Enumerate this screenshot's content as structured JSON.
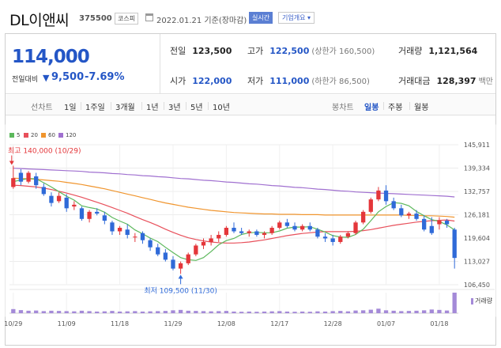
{
  "header": {
    "stock_name": "DL이앤씨",
    "stock_code": "375500",
    "market": "코스피",
    "date_text": "2022.01.21 기준(장마감)",
    "realtime_label": "실시간",
    "overview_label": "기업개요 ▾"
  },
  "price": {
    "current": "114,000",
    "change_label": "전일대비",
    "change_arrow": "▼",
    "change_value": "9,500",
    "change_pct": "-7.69%"
  },
  "stats": {
    "prev_close_label": "전일",
    "prev_close": "123,500",
    "high_label": "고가",
    "high": "122,500",
    "high_limit": "(상한가 160,500)",
    "volume_label": "거래량",
    "volume": "1,121,564",
    "open_label": "시가",
    "open": "122,000",
    "low_label": "저가",
    "low": "111,000",
    "low_limit": "(하한가 86,500)",
    "amount_label": "거래대금",
    "amount": "128,397",
    "amount_unit": "백만"
  },
  "tabs": {
    "line_title": "선차트",
    "line_tabs": [
      "1일",
      "1주일",
      "3개월",
      "1년",
      "3년",
      "5년",
      "10년"
    ],
    "candle_title": "봉차트",
    "candle_tabs": [
      "일봉",
      "주봉",
      "월봉"
    ],
    "active_candle": "일봉"
  },
  "colors": {
    "up": "#e4363a",
    "down": "#2f6ad8",
    "ma5": "#5cb85c",
    "ma20": "#e8505b",
    "ma60": "#f0952e",
    "ma120": "#a070d0",
    "volume": "#a48ad8"
  },
  "chart_data": {
    "type": "candlestick",
    "legend": [
      {
        "name": "5",
        "color": "#5cb85c"
      },
      {
        "name": "20",
        "color": "#e8505b"
      },
      {
        "name": "60",
        "color": "#f0952e"
      },
      {
        "name": "120",
        "color": "#a070d0"
      }
    ],
    "y_ticks": [
      145911,
      139334,
      132757,
      126181,
      119604,
      113027,
      106450
    ],
    "y_tick_labels": [
      "145,911",
      "139,334",
      "132,757",
      "126,181",
      "119,604",
      "113,027",
      "106,450"
    ],
    "ylim": [
      106450,
      145911
    ],
    "x_labels": [
      {
        "label": "10/29",
        "index": 0
      },
      {
        "label": "11/09",
        "index": 7
      },
      {
        "label": "11/18",
        "index": 14
      },
      {
        "label": "11/29",
        "index": 21
      },
      {
        "label": "12/08",
        "index": 28
      },
      {
        "label": "12/17",
        "index": 35
      },
      {
        "label": "12/28",
        "index": 42
      },
      {
        "label": "01/07",
        "index": 49
      },
      {
        "label": "01/18",
        "index": 56
      }
    ],
    "annotations": {
      "high_label": "최고 140,000 (10/29)",
      "high_value": 140000,
      "high_index": 0,
      "low_label": "최저 109,500 (11/30)",
      "low_value": 109500,
      "low_index": 22
    },
    "volume_label": "거래량",
    "candles": [
      {
        "o": 134000,
        "h": 140000,
        "l": 133500,
        "c": 136500
      },
      {
        "o": 138000,
        "h": 139000,
        "l": 134500,
        "c": 135500
      },
      {
        "o": 135500,
        "h": 138500,
        "l": 135000,
        "c": 138000
      },
      {
        "o": 137000,
        "h": 138000,
        "l": 133500,
        "c": 134500
      },
      {
        "o": 134000,
        "h": 135000,
        "l": 131500,
        "c": 132000
      },
      {
        "o": 131500,
        "h": 132500,
        "l": 128500,
        "c": 129500
      },
      {
        "o": 130000,
        "h": 132500,
        "l": 129500,
        "c": 131500
      },
      {
        "o": 131000,
        "h": 132000,
        "l": 127000,
        "c": 128000
      },
      {
        "o": 128500,
        "h": 130000,
        "l": 127500,
        "c": 129000
      },
      {
        "o": 128000,
        "h": 128500,
        "l": 124500,
        "c": 125000
      },
      {
        "o": 125000,
        "h": 127500,
        "l": 124000,
        "c": 127000
      },
      {
        "o": 127000,
        "h": 128000,
        "l": 126000,
        "c": 126500
      },
      {
        "o": 126000,
        "h": 127000,
        "l": 123500,
        "c": 124500
      },
      {
        "o": 124000,
        "h": 124500,
        "l": 120500,
        "c": 121500
      },
      {
        "o": 121500,
        "h": 123000,
        "l": 120500,
        "c": 122500
      },
      {
        "o": 122000,
        "h": 123500,
        "l": 119500,
        "c": 120500
      },
      {
        "o": 120000,
        "h": 121000,
        "l": 118500,
        "c": 120000
      },
      {
        "o": 121000,
        "h": 121500,
        "l": 118000,
        "c": 119000
      },
      {
        "o": 119000,
        "h": 119500,
        "l": 116000,
        "c": 117000
      },
      {
        "o": 117000,
        "h": 118000,
        "l": 114500,
        "c": 115000
      },
      {
        "o": 115500,
        "h": 116500,
        "l": 113000,
        "c": 113500
      },
      {
        "o": 113500,
        "h": 114500,
        "l": 110500,
        "c": 111000
      },
      {
        "o": 111000,
        "h": 113000,
        "l": 109500,
        "c": 112500
      },
      {
        "o": 112500,
        "h": 115500,
        "l": 112000,
        "c": 115000
      },
      {
        "o": 115000,
        "h": 118000,
        "l": 114500,
        "c": 117500
      },
      {
        "o": 117500,
        "h": 119500,
        "l": 116500,
        "c": 118500
      },
      {
        "o": 118500,
        "h": 120500,
        "l": 117500,
        "c": 119500
      },
      {
        "o": 119500,
        "h": 121500,
        "l": 118500,
        "c": 120500
      },
      {
        "o": 120500,
        "h": 123000,
        "l": 120000,
        "c": 122500
      },
      {
        "o": 122500,
        "h": 124000,
        "l": 121000,
        "c": 121500
      },
      {
        "o": 121500,
        "h": 122500,
        "l": 120500,
        "c": 121000
      },
      {
        "o": 121000,
        "h": 122000,
        "l": 120000,
        "c": 121500
      },
      {
        "o": 121500,
        "h": 122000,
        "l": 120000,
        "c": 120500
      },
      {
        "o": 120500,
        "h": 121500,
        "l": 119500,
        "c": 121000
      },
      {
        "o": 121000,
        "h": 123000,
        "l": 120500,
        "c": 122500
      },
      {
        "o": 122500,
        "h": 124500,
        "l": 122000,
        "c": 124000
      },
      {
        "o": 124000,
        "h": 125000,
        "l": 122500,
        "c": 123000
      },
      {
        "o": 123000,
        "h": 124000,
        "l": 121500,
        "c": 122000
      },
      {
        "o": 122000,
        "h": 123500,
        "l": 121500,
        "c": 123000
      },
      {
        "o": 123000,
        "h": 124000,
        "l": 121500,
        "c": 122000
      },
      {
        "o": 122000,
        "h": 122500,
        "l": 119500,
        "c": 120000
      },
      {
        "o": 120000,
        "h": 121000,
        "l": 118500,
        "c": 119500
      },
      {
        "o": 119500,
        "h": 120500,
        "l": 117500,
        "c": 118500
      },
      {
        "o": 118500,
        "h": 120500,
        "l": 118000,
        "c": 120000
      },
      {
        "o": 120000,
        "h": 121500,
        "l": 119500,
        "c": 121000
      },
      {
        "o": 121000,
        "h": 124500,
        "l": 120500,
        "c": 124000
      },
      {
        "o": 124000,
        "h": 127500,
        "l": 123500,
        "c": 127000
      },
      {
        "o": 127000,
        "h": 131000,
        "l": 126500,
        "c": 130500
      },
      {
        "o": 130500,
        "h": 134000,
        "l": 130000,
        "c": 133000
      },
      {
        "o": 133000,
        "h": 134500,
        "l": 129000,
        "c": 130000
      },
      {
        "o": 130000,
        "h": 131000,
        "l": 127500,
        "c": 128000
      },
      {
        "o": 128000,
        "h": 129000,
        "l": 125500,
        "c": 126000
      },
      {
        "o": 126000,
        "h": 127000,
        "l": 125000,
        "c": 126500
      },
      {
        "o": 126500,
        "h": 127500,
        "l": 124500,
        "c": 125000
      },
      {
        "o": 125000,
        "h": 126000,
        "l": 121500,
        "c": 122000
      },
      {
        "o": 123000,
        "h": 125500,
        "l": 120500,
        "c": 121000
      },
      {
        "o": 123500,
        "h": 125500,
        "l": 122000,
        "c": 124500
      },
      {
        "o": 124500,
        "h": 125000,
        "l": 122500,
        "c": 123500
      },
      {
        "o": 122000,
        "h": 122500,
        "l": 111000,
        "c": 114000
      }
    ],
    "volume": [
      0.2,
      0.15,
      0.12,
      0.13,
      0.1,
      0.12,
      0.11,
      0.1,
      0.09,
      0.12,
      0.1,
      0.08,
      0.09,
      0.11,
      0.08,
      0.09,
      0.1,
      0.08,
      0.09,
      0.1,
      0.11,
      0.14,
      0.16,
      0.12,
      0.11,
      0.1,
      0.09,
      0.1,
      0.11,
      0.08,
      0.07,
      0.08,
      0.07,
      0.08,
      0.09,
      0.1,
      0.08,
      0.07,
      0.08,
      0.07,
      0.09,
      0.08,
      0.1,
      0.11,
      0.09,
      0.13,
      0.14,
      0.17,
      0.22,
      0.14,
      0.12,
      0.1,
      0.11,
      0.12,
      0.14,
      0.18,
      0.16,
      0.13,
      1.0
    ],
    "ma5": [
      135500,
      136000,
      136400,
      136300,
      135200,
      134000,
      132700,
      131400,
      130300,
      128700,
      128200,
      127800,
      126900,
      125400,
      124400,
      123500,
      121900,
      120800,
      119600,
      118600,
      117000,
      115500,
      114100,
      113500,
      113300,
      114100,
      115800,
      117700,
      118900,
      119500,
      120600,
      121100,
      121200,
      121100,
      121100,
      121600,
      122400,
      122700,
      122700,
      122800,
      122100,
      121300,
      120300,
      119900,
      119800,
      120600,
      122100,
      124500,
      127000,
      128500,
      129600,
      129400,
      128700,
      127100,
      125900,
      124800,
      124300,
      123300,
      121900
    ],
    "ma20": [
      134500,
      134400,
      134200,
      134000,
      133700,
      133300,
      132800,
      132300,
      131700,
      131100,
      130400,
      129700,
      129000,
      128200,
      127400,
      126600,
      125700,
      124800,
      124000,
      123100,
      122100,
      121200,
      120400,
      119700,
      119200,
      118800,
      118500,
      118300,
      118200,
      118200,
      118300,
      118500,
      118800,
      119100,
      119500,
      119900,
      120300,
      120600,
      120900,
      121100,
      121300,
      121400,
      121400,
      121400,
      121400,
      121500,
      121700,
      122000,
      122400,
      122800,
      123200,
      123500,
      123800,
      124100,
      124300,
      124500,
      124600,
      124700,
      124400
    ],
    "ma60": [
      136500,
      136400,
      136300,
      136200,
      136000,
      135800,
      135600,
      135300,
      135000,
      134700,
      134300,
      133900,
      133500,
      133000,
      132500,
      132000,
      131500,
      131000,
      130500,
      130000,
      129500,
      129100,
      128700,
      128300,
      128000,
      127700,
      127400,
      127200,
      127000,
      126800,
      126700,
      126600,
      126500,
      126400,
      126400,
      126300,
      126300,
      126300,
      126200,
      126200,
      126200,
      126100,
      126100,
      126100,
      126100,
      126100,
      126100,
      126100,
      126100,
      126100,
      126100,
      126100,
      126000,
      126000,
      125900,
      125900,
      125800,
      125700,
      125500
    ],
    "ma120": [
      139300,
      139200,
      139100,
      139000,
      138900,
      138800,
      138700,
      138600,
      138500,
      138400,
      138200,
      138100,
      138000,
      137800,
      137700,
      137500,
      137400,
      137200,
      137100,
      136900,
      136800,
      136600,
      136400,
      136300,
      136100,
      135900,
      135800,
      135600,
      135400,
      135300,
      135100,
      134900,
      134800,
      134600,
      134400,
      134300,
      134100,
      133900,
      133800,
      133600,
      133400,
      133300,
      133100,
      132900,
      132800,
      132600,
      132500,
      132400,
      132300,
      132200,
      132100,
      132000,
      131900,
      131800,
      131700,
      131600,
      131500,
      131400,
      131200
    ]
  }
}
